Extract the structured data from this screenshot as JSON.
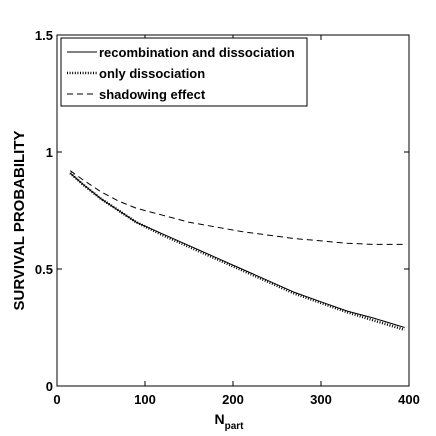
{
  "chart_data": {
    "type": "line",
    "title": "",
    "xlabel": "N",
    "xlabel_subscript": "part",
    "ylabel": "SURVIVAL PROBABILITY",
    "xlim": [
      0,
      400
    ],
    "ylim": [
      0,
      1.5
    ],
    "xticks": [
      0,
      100,
      200,
      300,
      400
    ],
    "xtick_labels": [
      "0",
      "100",
      "200",
      "300",
      "400"
    ],
    "yticks": [
      0,
      0.5,
      1,
      1.5
    ],
    "ytick_labels": [
      "0",
      "0.5",
      "1",
      "1.5"
    ],
    "grid": false,
    "legend_position": "top-left",
    "series": [
      {
        "name": "recombination and dissociation",
        "style": "solid",
        "x": [
          15,
          30,
          50,
          70,
          90,
          120,
          150,
          180,
          210,
          240,
          270,
          300,
          330,
          360,
          395
        ],
        "y": [
          0.91,
          0.86,
          0.8,
          0.75,
          0.7,
          0.65,
          0.6,
          0.55,
          0.5,
          0.45,
          0.4,
          0.36,
          0.32,
          0.29,
          0.25
        ]
      },
      {
        "name": "only dissociation",
        "style": "dotted",
        "x": [
          15,
          30,
          50,
          70,
          90,
          120,
          150,
          180,
          210,
          240,
          270,
          300,
          330,
          360,
          395
        ],
        "y": [
          0.91,
          0.86,
          0.8,
          0.75,
          0.7,
          0.645,
          0.595,
          0.545,
          0.495,
          0.445,
          0.395,
          0.355,
          0.315,
          0.28,
          0.24
        ]
      },
      {
        "name": "shadowing effect",
        "style": "dashed",
        "x": [
          15,
          30,
          50,
          70,
          90,
          120,
          150,
          180,
          210,
          240,
          270,
          300,
          330,
          360,
          395
        ],
        "y": [
          0.92,
          0.88,
          0.83,
          0.79,
          0.76,
          0.73,
          0.7,
          0.68,
          0.66,
          0.645,
          0.63,
          0.62,
          0.61,
          0.605,
          0.605
        ]
      }
    ]
  }
}
